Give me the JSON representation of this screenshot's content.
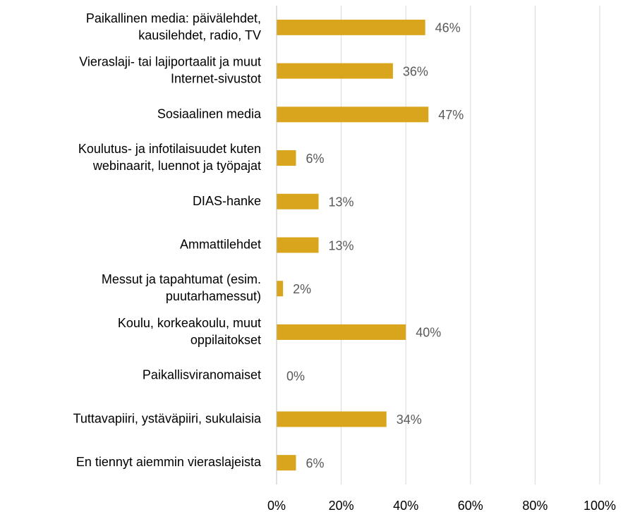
{
  "chart_data": {
    "type": "barh",
    "categories": [
      [
        "Paikallinen media: päivälehdet,",
        "kausilehdet, radio, TV"
      ],
      [
        "Vieraslaji- tai lajiportaalit ja muut",
        "Internet-sivustot"
      ],
      [
        "Sosiaalinen media"
      ],
      [
        "Koulutus- ja infotilaisuudet kuten",
        "webinaarit, luennot ja työpajat"
      ],
      [
        "DIAS-hanke"
      ],
      [
        "Ammattilehdet"
      ],
      [
        "Messut ja tapahtumat (esim.",
        "puutarhamessut)"
      ],
      [
        "Koulu, korkeakoulu, muut",
        "oppilaitokset"
      ],
      [
        "Paikallisviranomaiset"
      ],
      [
        "Tuttavapiiri, ystäväpiiri, sukulaisia"
      ],
      [
        "En tiennyt aiemmin vieraslajeista"
      ]
    ],
    "values": [
      46,
      36,
      47,
      6,
      13,
      13,
      2,
      40,
      0,
      34,
      6
    ],
    "value_labels": [
      "46%",
      "36%",
      "47%",
      "6%",
      "13%",
      "13%",
      "2%",
      "40%",
      "0%",
      "34%",
      "6%"
    ],
    "color": "#d8a51c",
    "xlim": [
      0,
      100
    ],
    "xticks": [
      {
        "value": 0,
        "label": "0%"
      },
      {
        "value": 20,
        "label": "20%"
      },
      {
        "value": 40,
        "label": "40%"
      },
      {
        "value": 60,
        "label": "60%"
      },
      {
        "value": 80,
        "label": "80%"
      },
      {
        "value": 100,
        "label": "100%"
      }
    ],
    "grid": true
  }
}
